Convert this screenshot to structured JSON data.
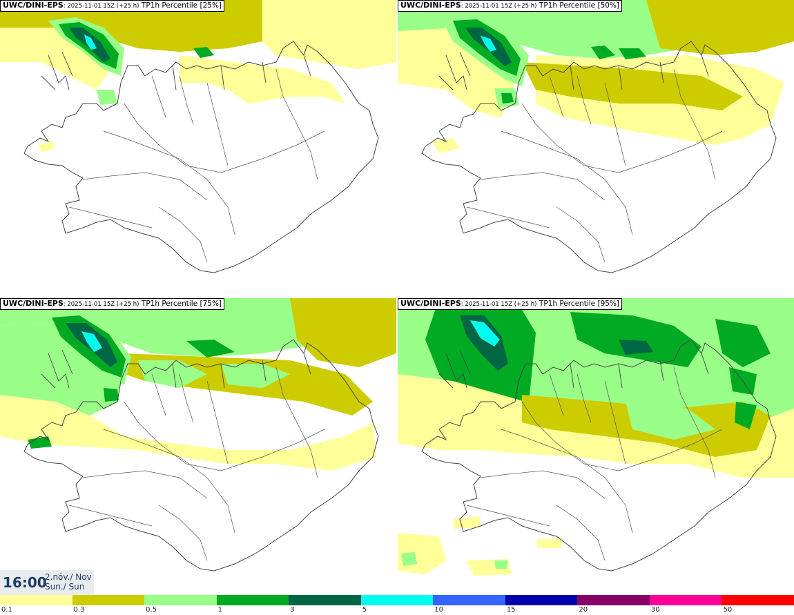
{
  "panels": [
    {
      "model": "UWC/DINI-EPS",
      "run": ": 2025-11-01 15Z (+25 h)",
      "param": "TP1h Percentile [25%]",
      "level": 0
    },
    {
      "model": "UWC/DINI-EPS",
      "run": ": 2025-11-01 15Z (+25 h)",
      "param": "TP1h Percentile [50%]",
      "level": 1
    },
    {
      "model": "UWC/DINI-EPS",
      "run": ": 2025-11-01 15Z (+25 h)",
      "param": "TP1h Percentile [75%]",
      "level": 2
    },
    {
      "model": "UWC/DINI-EPS",
      "run": ": 2025-11-01 15Z (+25 h)",
      "param": "TP1h Percentile [95%]",
      "level": 3
    }
  ],
  "time": {
    "clock": "16:00",
    "date_line1": "2.nóv./ Nov",
    "date_line2": "Sun./ Sun"
  },
  "legend": {
    "colors": [
      "#ffff99",
      "#cccc00",
      "#99ff88",
      "#00aa22",
      "#006644",
      "#00ffee",
      "#3366ff",
      "#0000aa",
      "#880066",
      "#ff0099",
      "#ff0000"
    ],
    "labels": [
      "0.1",
      "0.3",
      "0.5",
      "1",
      "3",
      "5",
      "10",
      "15",
      "20",
      "30",
      "50"
    ]
  }
}
